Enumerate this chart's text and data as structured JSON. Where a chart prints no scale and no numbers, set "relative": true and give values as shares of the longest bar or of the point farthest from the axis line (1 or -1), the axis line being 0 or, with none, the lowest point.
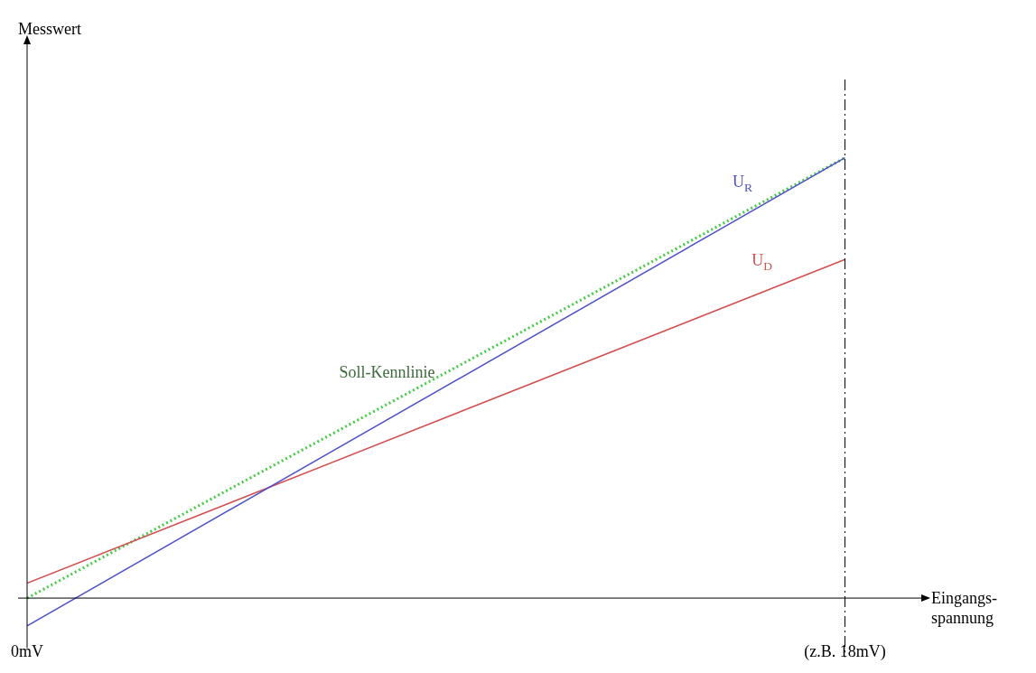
{
  "chart_data": {
    "type": "line",
    "relative": true,
    "xlabel": "Eingangs-\nspannung",
    "annotations": [
      "Messwert"
    ],
    "x": [
      0,
      18
    ],
    "xlim": [
      0,
      19.7
    ],
    "xticks": [
      {
        "value": 0,
        "label": "0mV"
      },
      {
        "value": 18,
        "label": "(z.B. 18mV)"
      }
    ],
    "series": [
      {
        "name": "U$_{R}$",
        "color": "#5050c8",
        "values": [
          -0.063,
          1
        ],
        "line_style": "solid"
      },
      {
        "name": "U$_{D}$",
        "color": "#d05050",
        "values": [
          0.034,
          0.769
        ],
        "line_style": "solid"
      },
      {
        "name": "Soll-Kennlinie",
        "color": "#44cc44",
        "values": [
          0,
          1
        ],
        "line_style": "dotted"
      }
    ],
    "ref_lines": [
      {
        "axis": "x",
        "value": 18,
        "color": "#000000",
        "line_style": "dashed"
      }
    ],
    "grid": false,
    "legend": false,
    "marker": "none"
  }
}
